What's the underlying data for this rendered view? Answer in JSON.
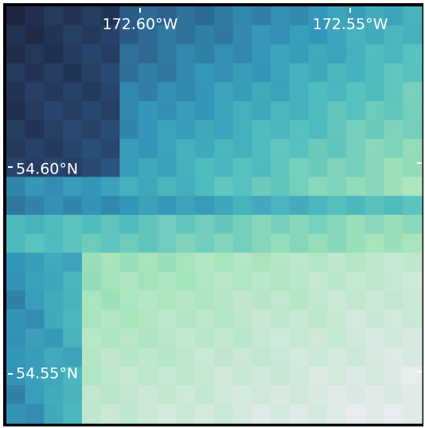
{
  "map": {
    "x_labels": [
      "172.60°W",
      "172.55°W"
    ],
    "y_labels": [
      "54.60°N",
      "54.55°N"
    ]
  }
}
